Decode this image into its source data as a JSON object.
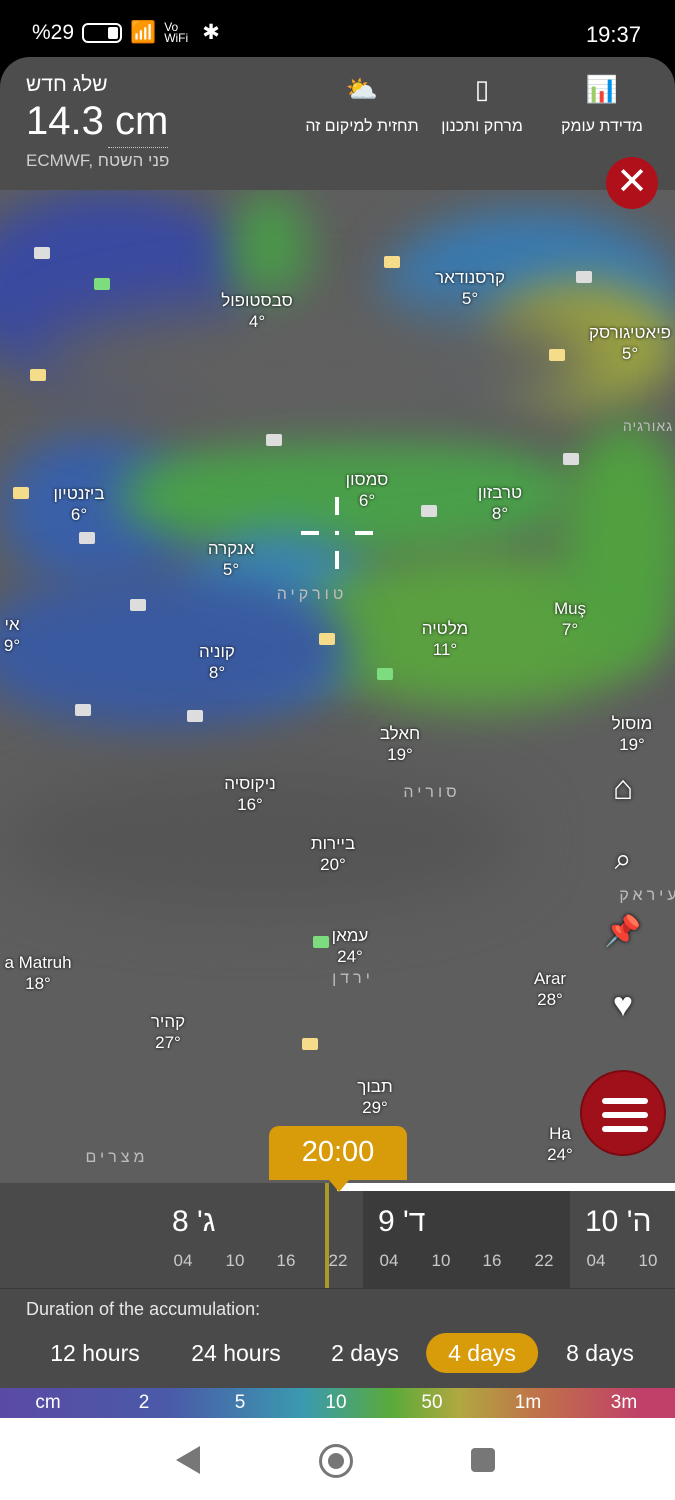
{
  "status_bar": {
    "battery": "%29",
    "network": "Vo WiFi",
    "time": "19:37"
  },
  "header": {
    "title": "שלג חדש",
    "value": "14.3 cm",
    "source": "ECMWF, פני השטח",
    "buttons": [
      {
        "label": "תחזית למיקום זה",
        "icon": "cloud-sun-icon"
      },
      {
        "label": "מרחק ותכנון",
        "icon": "ruler-icon"
      },
      {
        "label": "מדידת עומק",
        "icon": "bar-chart-icon"
      }
    ]
  },
  "map": {
    "cities": [
      {
        "name": "סבסטופול",
        "temp": "4°"
      },
      {
        "name": "קרסנודאר",
        "temp": "5°"
      },
      {
        "name": "פיאטיגורסק",
        "temp": "5°"
      },
      {
        "name": "סמסון",
        "temp": "6°"
      },
      {
        "name": "טרבזון",
        "temp": "8°"
      },
      {
        "name": "ביזנטיון",
        "temp": "6°"
      },
      {
        "name": "אנקרה",
        "temp": "5°"
      },
      {
        "name": "מלטיה",
        "temp": "11°"
      },
      {
        "name": "Muş",
        "temp": "7°"
      },
      {
        "name": "אי",
        "temp": "9°"
      },
      {
        "name": "קוניה",
        "temp": "8°"
      },
      {
        "name": "חאלב",
        "temp": "19°"
      },
      {
        "name": "מוסול",
        "temp": "19°"
      },
      {
        "name": "ניקוסיה",
        "temp": "16°"
      },
      {
        "name": "ביירות",
        "temp": "20°"
      },
      {
        "name": "עמאן",
        "temp": "24°"
      },
      {
        "name": "a Matruh",
        "temp": "18°"
      },
      {
        "name": "Arar",
        "temp": "28°"
      },
      {
        "name": "קהיר",
        "temp": "27°"
      },
      {
        "name": "תבוך",
        "temp": "29°"
      },
      {
        "name": "Ha",
        "temp": "24°"
      }
    ],
    "countries": [
      "טורקיה",
      "סוריה",
      "ירדן",
      "מצרים",
      "גאורגיה",
      "עיראק"
    ]
  },
  "timeline": {
    "current_time": "20:00",
    "days": [
      {
        "label": "ג' 8",
        "hours": [
          "04",
          "10",
          "16",
          "22"
        ]
      },
      {
        "label": "ד' 9",
        "hours": [
          "04",
          "10",
          "16",
          "22"
        ]
      },
      {
        "label": "ה' 10",
        "hours": [
          "04",
          "10"
        ]
      }
    ]
  },
  "accumulation": {
    "title": "Duration of the accumulation:",
    "options": [
      "12 hours",
      "24 hours",
      "2 days",
      "4 days",
      "8 days"
    ],
    "selected": "4 days"
  },
  "legend": {
    "labels": [
      "cm",
      "2",
      "5",
      "10",
      "50",
      "1m",
      "3m"
    ]
  }
}
